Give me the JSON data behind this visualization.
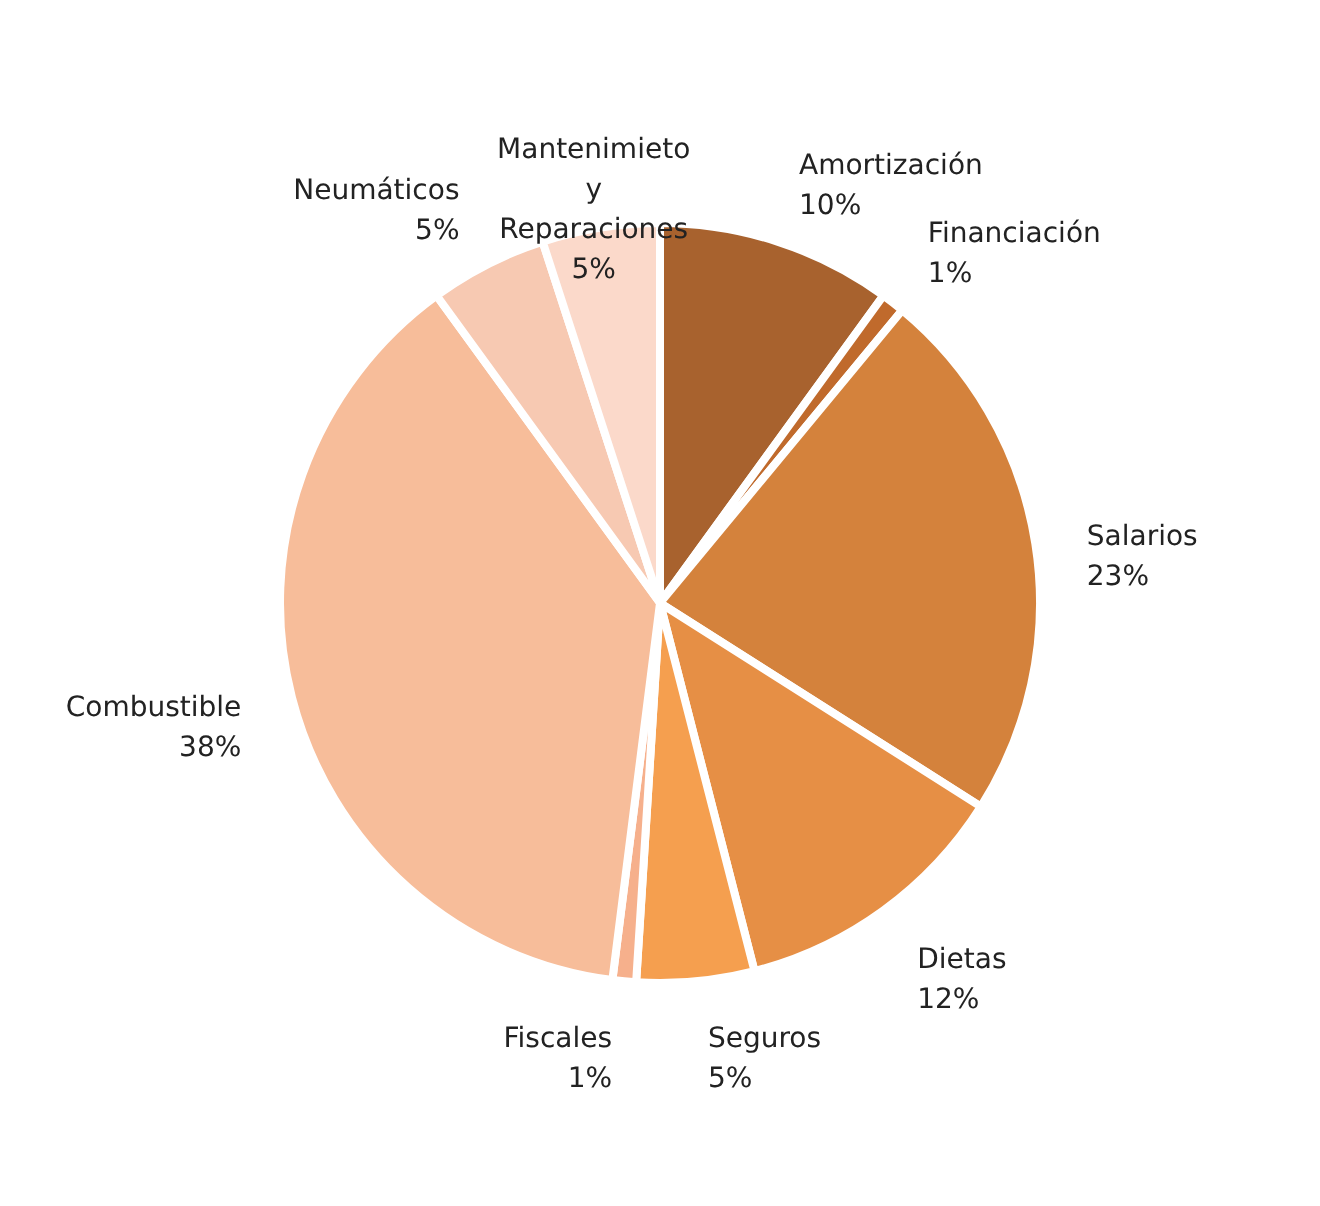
{
  "chart_data": {
    "type": "pie",
    "categories": [
      "Amortización",
      "Financiación",
      "Salarios",
      "Dietas",
      "Seguros",
      "Fiscales",
      "Combustible",
      "Neumáticos",
      "Mantenimieto y Reparaciones"
    ],
    "values": [
      10,
      1,
      23,
      12,
      5,
      1,
      38,
      5,
      5
    ],
    "value_labels": [
      "10%",
      "1%",
      "23%",
      "12%",
      "5%",
      "1%",
      "38%",
      "5%",
      "5%"
    ],
    "colors": [
      "#a8622e",
      "#c06a2c",
      "#d4823c",
      "#e68f45",
      "#f59f4f",
      "#f6b08c",
      "#f7bd9a",
      "#f7c9b2",
      "#fbd9ca"
    ]
  }
}
